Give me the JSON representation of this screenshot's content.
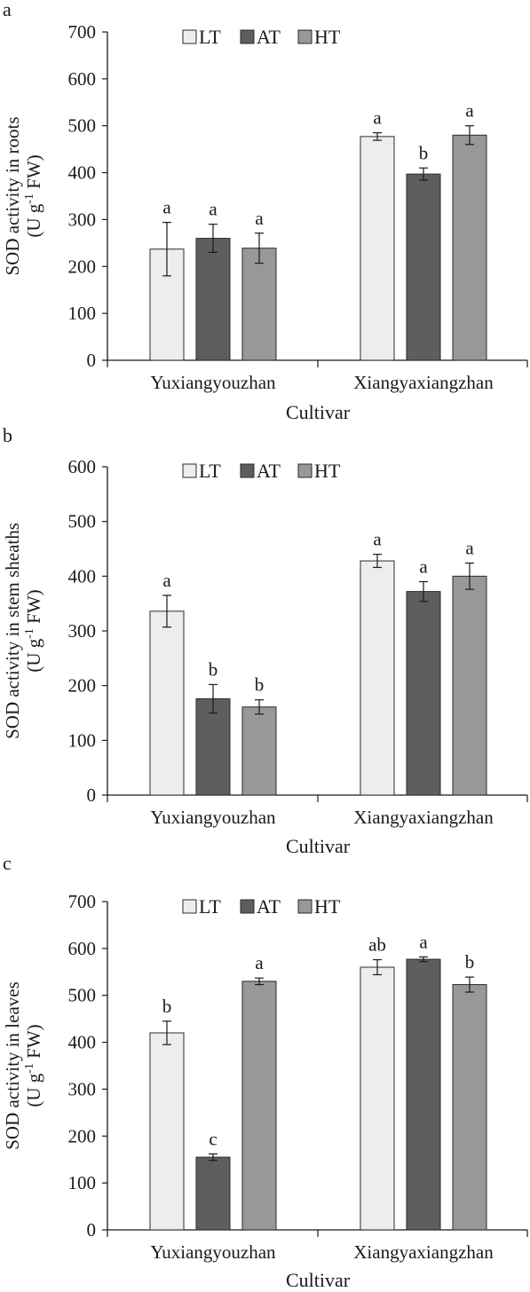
{
  "colors": {
    "LT": "#eceeed",
    "AT": "#5e5e60",
    "HT": "#98989a",
    "axis": "#1a1a1a",
    "outline": "#2a2a2a"
  },
  "chart_data": [
    {
      "type": "bar",
      "panel_label": "a",
      "categories": [
        "Yuxiangyouzhan",
        "Xiangyaxiangzhan"
      ],
      "series": [
        {
          "name": "LT",
          "values": [
            237,
            477
          ],
          "errors": [
            57,
            8
          ],
          "letters": [
            "a",
            "a"
          ]
        },
        {
          "name": "AT",
          "values": [
            260,
            397
          ],
          "errors": [
            30,
            13
          ],
          "letters": [
            "a",
            "b"
          ]
        },
        {
          "name": "HT",
          "values": [
            239,
            480
          ],
          "errors": [
            32,
            20
          ],
          "letters": [
            "a",
            "a"
          ]
        }
      ],
      "xlabel": "Cultivar",
      "ylabel_line1": "SOD activity in roots",
      "ylabel_unit_pre": "(U g",
      "ylabel_unit_sup": "-1",
      "ylabel_unit_post": " FW)",
      "ylim": [
        0,
        700
      ],
      "yticks": [
        0,
        100,
        200,
        300,
        400,
        500,
        600,
        700
      ],
      "grid": false,
      "legend_position": "top"
    },
    {
      "type": "bar",
      "panel_label": "b",
      "categories": [
        "Yuxiangyouzhan",
        "Xiangyaxiangzhan"
      ],
      "series": [
        {
          "name": "LT",
          "values": [
            336,
            428
          ],
          "errors": [
            29,
            12
          ],
          "letters": [
            "a",
            "a"
          ]
        },
        {
          "name": "AT",
          "values": [
            176,
            372
          ],
          "errors": [
            26,
            18
          ],
          "letters": [
            "b",
            "a"
          ]
        },
        {
          "name": "HT",
          "values": [
            161,
            400
          ],
          "errors": [
            13,
            24
          ],
          "letters": [
            "b",
            "a"
          ]
        }
      ],
      "xlabel": "Cultivar",
      "ylabel_line1": "SOD activity in stem sheaths",
      "ylabel_unit_pre": "(U g",
      "ylabel_unit_sup": "-1",
      "ylabel_unit_post": " FW)",
      "ylim": [
        0,
        600
      ],
      "yticks": [
        0,
        100,
        200,
        300,
        400,
        500,
        600
      ],
      "grid": false,
      "legend_position": "top"
    },
    {
      "type": "bar",
      "panel_label": "c",
      "categories": [
        "Yuxiangyouzhan",
        "Xiangyaxiangzhan"
      ],
      "series": [
        {
          "name": "LT",
          "values": [
            420,
            560
          ],
          "errors": [
            25,
            16
          ],
          "letters": [
            "b",
            "ab"
          ]
        },
        {
          "name": "AT",
          "values": [
            155,
            577
          ],
          "errors": [
            7,
            5
          ],
          "letters": [
            "c",
            "a"
          ]
        },
        {
          "name": "HT",
          "values": [
            530,
            523
          ],
          "errors": [
            7,
            16
          ],
          "letters": [
            "a",
            "b"
          ]
        }
      ],
      "xlabel": "Cultivar",
      "ylabel_line1": "SOD activity in leaves",
      "ylabel_unit_pre": "(U g",
      "ylabel_unit_sup": "-1",
      "ylabel_unit_post": " FW)",
      "ylim": [
        0,
        700
      ],
      "yticks": [
        0,
        100,
        200,
        300,
        400,
        500,
        600,
        700
      ],
      "grid": false,
      "legend_position": "top"
    }
  ]
}
